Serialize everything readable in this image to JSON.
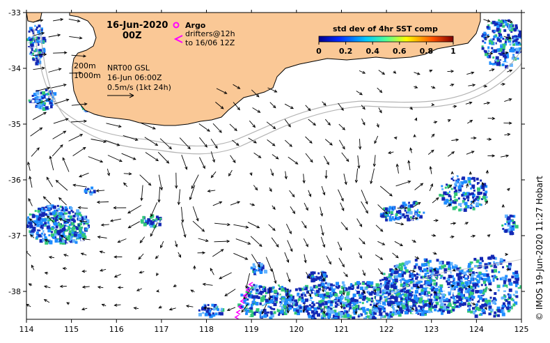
{
  "map": {
    "date": "16-Jun-2020",
    "time": "00Z",
    "product": "NRT00 GSL",
    "product_time": "16-Jun 06:00Z",
    "depth_200": "200m",
    "depth_1000": "1000m",
    "vector_scale": "0.5m/s (1kt 24h)",
    "credit": "© IMOS 19-Jun-2020 11:27 Hobart"
  },
  "legend": {
    "argo_label": "Argo",
    "drifters_label_1": "drifters@12h",
    "drifters_label_2": "to 16/06 12Z",
    "colorbar_title": "std dev of 4hr SST comp",
    "colorbar_ticks": [
      "0",
      "0.2",
      "0.4",
      "0.6",
      "0.8",
      "1"
    ]
  },
  "axes": {
    "x_ticks": [
      "114",
      "115",
      "116",
      "117",
      "118",
      "119",
      "120",
      "121",
      "122",
      "123",
      "124",
      "125"
    ],
    "y_ticks": [
      "-33",
      "-34",
      "-35",
      "-36",
      "-37",
      "-38"
    ],
    "lon_range": [
      114,
      125
    ],
    "lat_range": [
      -38.5,
      -33
    ]
  },
  "colors": {
    "land": "#fac896",
    "sst_low": "#1428b4",
    "sst_mid": "#1e8cff",
    "sst_high": "#32c878",
    "drifter": "#ff00ff",
    "isobath": "#b4b4b4"
  }
}
